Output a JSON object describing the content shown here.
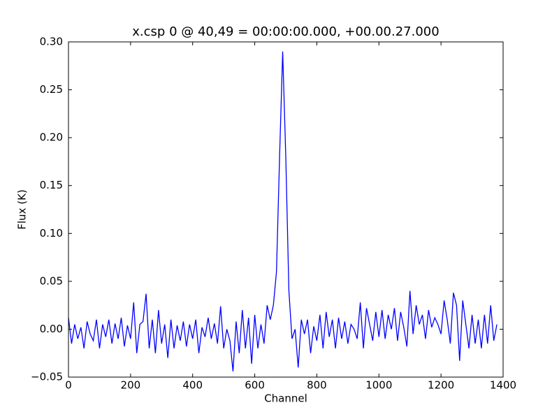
{
  "chart_data": {
    "type": "line",
    "title": "x.csp 0 @ 40,49 = 00:00:00.000, +00.00.27.000",
    "xlabel": "Channel",
    "ylabel": "Flux (K)",
    "color": "#0000ff",
    "grid": false,
    "xlim": [
      0,
      1400
    ],
    "xticks": [
      0,
      200,
      400,
      600,
      800,
      1000,
      1200,
      1400
    ],
    "ylim": [
      -0.05,
      0.3
    ],
    "yticks": [
      {
        "value": -0.05,
        "label": "−0.05"
      },
      {
        "value": 0,
        "label": "0.00"
      },
      0.05,
      {
        "value": 0.1,
        "label": "0.10"
      },
      0.15,
      {
        "value": 0.2,
        "label": "0.20"
      },
      0.25,
      {
        "value": 0.3,
        "label": "0.30"
      }
    ],
    "x": [
      0,
      10,
      20,
      30,
      40,
      50,
      60,
      70,
      80,
      90,
      100,
      110,
      120,
      130,
      140,
      150,
      160,
      170,
      180,
      190,
      200,
      210,
      220,
      230,
      240,
      250,
      260,
      270,
      280,
      290,
      300,
      310,
      320,
      330,
      340,
      350,
      360,
      370,
      380,
      390,
      400,
      410,
      420,
      430,
      440,
      450,
      460,
      470,
      480,
      490,
      500,
      510,
      520,
      530,
      540,
      550,
      560,
      570,
      580,
      590,
      600,
      610,
      620,
      630,
      640,
      650,
      660,
      670,
      680,
      690,
      700,
      710,
      720,
      730,
      740,
      750,
      760,
      770,
      780,
      790,
      800,
      810,
      820,
      830,
      840,
      850,
      860,
      870,
      880,
      890,
      900,
      910,
      920,
      930,
      940,
      950,
      960,
      970,
      980,
      990,
      1000,
      1010,
      1020,
      1030,
      1040,
      1050,
      1060,
      1070,
      1080,
      1090,
      1100,
      1110,
      1120,
      1130,
      1140,
      1150,
      1160,
      1170,
      1180,
      1190,
      1200,
      1210,
      1220,
      1230,
      1240,
      1250,
      1260,
      1270,
      1280,
      1290,
      1300,
      1310,
      1320,
      1330,
      1340,
      1350,
      1360,
      1370,
      1380
    ],
    "values": [
      0.012,
      -0.015,
      0.005,
      -0.01,
      0.002,
      -0.02,
      0.008,
      -0.005,
      -0.012,
      0.01,
      -0.02,
      0.005,
      -0.008,
      0.01,
      -0.015,
      0.006,
      -0.01,
      0.012,
      -0.018,
      0.004,
      -0.01,
      0.028,
      -0.025,
      0.005,
      0.008,
      0.037,
      -0.02,
      0.01,
      -0.025,
      0.02,
      -0.015,
      0.005,
      -0.03,
      0.01,
      -0.02,
      0.004,
      -0.012,
      0.008,
      -0.018,
      0.005,
      -0.01,
      0.01,
      -0.025,
      0.002,
      -0.008,
      0.012,
      -0.01,
      0.006,
      -0.015,
      0.024,
      -0.02,
      0,
      -0.012,
      -0.044,
      0.008,
      -0.025,
      0.02,
      -0.02,
      0.012,
      -0.036,
      0.015,
      -0.02,
      0.005,
      -0.015,
      0.025,
      0.01,
      0.025,
      0.06,
      0.18,
      0.29,
      0.18,
      0.04,
      -0.01,
      0,
      -0.04,
      0.01,
      -0.005,
      0.01,
      -0.025,
      0.003,
      -0.012,
      0.015,
      -0.02,
      0.018,
      -0.008,
      0.01,
      -0.02,
      0.012,
      -0.01,
      0.008,
      -0.015,
      0.005,
      0,
      -0.01,
      0.028,
      -0.02,
      0.022,
      0.005,
      -0.012,
      0.018,
      -0.008,
      0.02,
      -0.01,
      0.015,
      0,
      0.022,
      -0.012,
      0.018,
      0.002,
      -0.018,
      0.04,
      -0.005,
      0.025,
      0.005,
      0.015,
      -0.01,
      0.02,
      0.002,
      0.012,
      0.005,
      -0.005,
      0.03,
      0.01,
      -0.015,
      0.038,
      0.025,
      -0.033,
      0.03,
      0.005,
      -0.02,
      0.015,
      -0.015,
      0.01,
      -0.02,
      0.015,
      -0.015,
      0.025,
      -0.012,
      0.005
    ]
  }
}
